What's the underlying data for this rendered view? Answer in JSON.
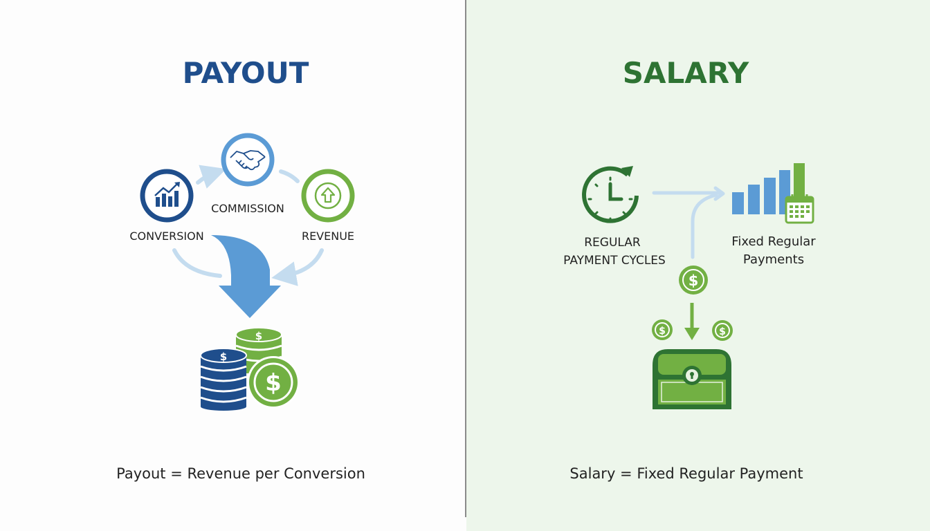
{
  "colors": {
    "dark_blue": "#1f4e8c",
    "mid_blue": "#5b9bd5",
    "light_blue": "#c4dcef",
    "green": "#72b043",
    "dark_green": "#2e7333",
    "right_background": "#edf6eb",
    "divider": "#8a8a8a"
  },
  "payout": {
    "title": "PAYOUT",
    "nodes": [
      {
        "label": "CONVERSION",
        "icon": "growth-chart-icon"
      },
      {
        "label": "COMMISSION",
        "icon": "handshake-icon"
      },
      {
        "label": "REVENUE",
        "icon": "up-arrow-icon"
      }
    ],
    "result_icon": "coin-stacks-icon",
    "formula": "Payout = Revenue per Conversion"
  },
  "salary": {
    "title": "SALARY",
    "cycle_label_line1": "REGULAR",
    "cycle_label_line2": "PAYMENT CYCLES",
    "payments_label_line1": "Fixed Regular",
    "payments_label_line2": "Payments",
    "icons": [
      "clock-cycle-icon",
      "bar-chart-calendar-icon",
      "dollar-coin-icon",
      "treasure-chest-icon"
    ],
    "formula": "Salary = Fixed Regular Payment"
  }
}
